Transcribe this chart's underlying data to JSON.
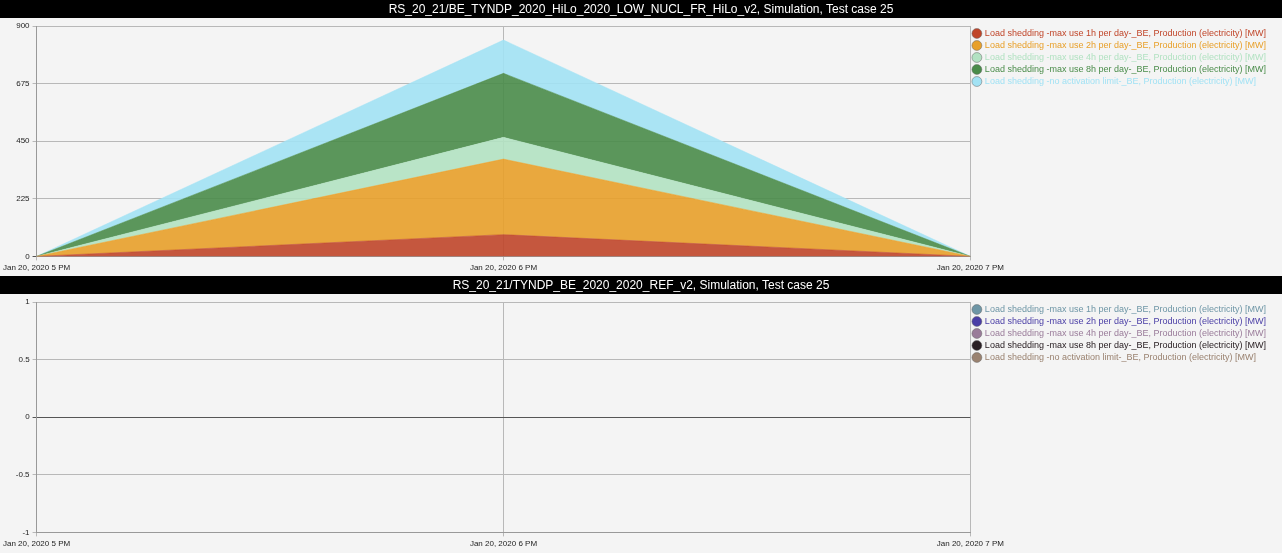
{
  "chart_data": [
    {
      "type": "area",
      "title": "RS_20_21/BE_TYNDP_2020_HiLo_2020_LOW_NUCL_FR_HiLo_v2, Simulation, Test case 25",
      "stacked": true,
      "categories": [
        "Jan 20, 2020 5 PM",
        "Jan 20, 2020 6 PM",
        "Jan 20, 2020 7 PM"
      ],
      "series": [
        {
          "name": "Load shedding -max use 1h per day-_BE, Production (electricity) [MW]",
          "color": "#c0462a",
          "values": [
            0,
            85,
            0
          ]
        },
        {
          "name": "Load shedding -max use 2h per day-_BE, Production (electricity) [MW]",
          "color": "#e8a02a",
          "values": [
            0,
            295,
            0
          ]
        },
        {
          "name": "Load shedding -max use 4h per day-_BE, Production (electricity) [MW]",
          "color": "#b2e2c2",
          "values": [
            0,
            85,
            0
          ]
        },
        {
          "name": "Load shedding -max use 8h per day-_BE, Production (electricity) [MW]",
          "color": "#4a8c4a",
          "values": [
            0,
            250,
            0
          ]
        },
        {
          "name": "Load shedding -no activation limit-_BE, Production (electricity) [MW]",
          "color": "#a2e2f4",
          "values": [
            0,
            130,
            0
          ]
        }
      ],
      "ylim": [
        0,
        900
      ],
      "yticks": [
        0,
        225,
        450,
        675,
        900
      ],
      "grid": true,
      "legend": "right"
    },
    {
      "type": "area",
      "title": "RS_20_21/TYNDP_BE_2020_2020_REF_v2, Simulation, Test case 25",
      "stacked": true,
      "categories": [
        "Jan 20, 2020 5 PM",
        "Jan 20, 2020 6 PM",
        "Jan 20, 2020 7 PM"
      ],
      "series": [
        {
          "name": "Load shedding -max use 1h per day-_BE, Production (electricity) [MW]",
          "color": "#6e96a6",
          "values": [
            null,
            null,
            null
          ]
        },
        {
          "name": "Load shedding -max use 2h per day-_BE, Production (electricity) [MW]",
          "color": "#4a3ea6",
          "values": [
            null,
            null,
            null
          ]
        },
        {
          "name": "Load shedding -max use 4h per day-_BE, Production (electricity) [MW]",
          "color": "#9a7c9a",
          "values": [
            null,
            null,
            null
          ]
        },
        {
          "name": "Load shedding -max use 8h per day-_BE, Production (electricity) [MW]",
          "color": "#2a2024",
          "values": [
            null,
            null,
            null
          ]
        },
        {
          "name": "Load shedding -no activation limit-_BE, Production (electricity) [MW]",
          "color": "#9a8270",
          "values": [
            null,
            null,
            null
          ]
        }
      ],
      "ylim": [
        -1,
        1
      ],
      "yticks": [
        -1,
        -0.5,
        0,
        0.5,
        1
      ],
      "grid": true,
      "legend": "right"
    }
  ]
}
